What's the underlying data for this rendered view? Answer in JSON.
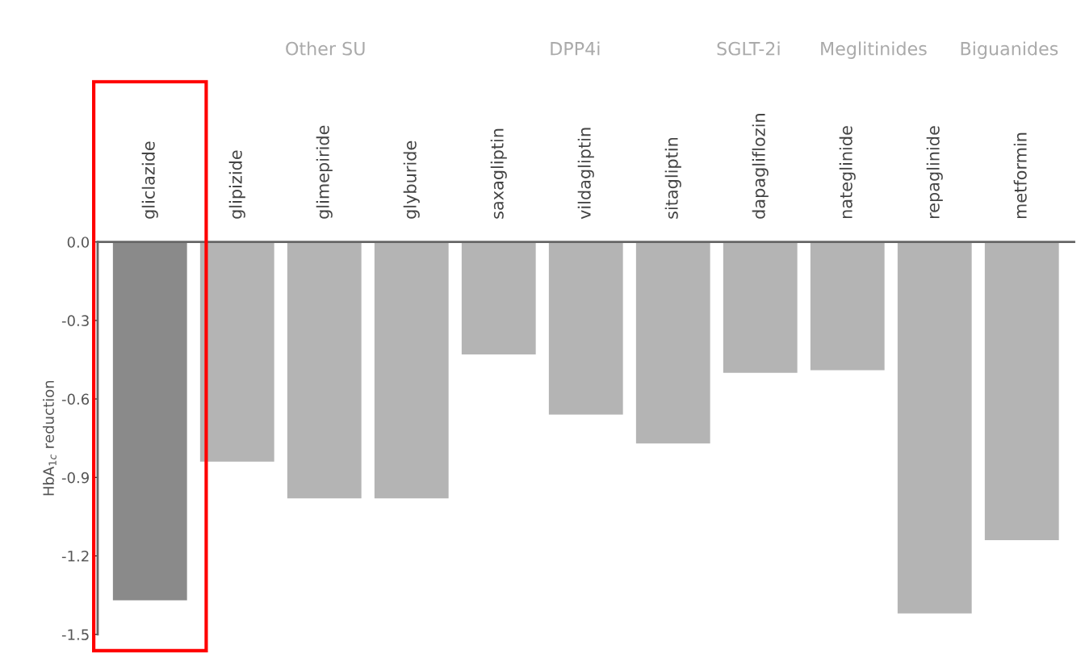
{
  "chart_data": {
    "type": "bar",
    "ylabel": "HbA$_{1c}$ reduction",
    "categories": [
      "gliclazide",
      "glipizide",
      "glimepiride",
      "glyburide",
      "saxagliptin",
      "vildagliptin",
      "sitagliptin",
      "dapagliflozin",
      "nateglinide",
      "repaglinide",
      "metformin"
    ],
    "values": [
      -1.37,
      -0.84,
      -0.98,
      -0.98,
      -0.43,
      -0.66,
      -0.77,
      -0.5,
      -0.49,
      -1.42,
      -1.14
    ],
    "colors": [
      "#8a8a8a",
      "#b4b4b4",
      "#b4b4b4",
      "#b4b4b4",
      "#b4b4b4",
      "#b4b4b4",
      "#b4b4b4",
      "#b4b4b4",
      "#b4b4b4",
      "#b4b4b4",
      "#b4b4b4"
    ],
    "ylim": [
      -1.5,
      0
    ],
    "yticks": [
      {
        "value": 0,
        "label": "0.0"
      },
      -0.3,
      -0.6,
      -0.9,
      -1.2,
      -1.5
    ],
    "grid": false,
    "legend": false,
    "annotations": [
      "Other SU",
      "DPP4i",
      "SGLT-2i",
      "Meglitinides",
      "Biguanides"
    ]
  }
}
